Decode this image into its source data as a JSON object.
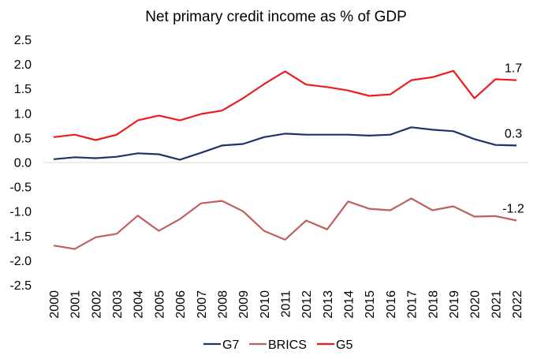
{
  "chart_data": {
    "type": "line",
    "title": "Net primary credit income as % of GDP",
    "xlabel": "",
    "ylabel": "",
    "ylim": [
      -2.5,
      2.5
    ],
    "yticks": [
      "2.5",
      "2.0",
      "1.5",
      "1.0",
      "0.5",
      "0.0",
      "-0.5",
      "-1.0",
      "-1.5",
      "-2.0",
      "-2.5"
    ],
    "ytick_values": [
      2.5,
      2.0,
      1.5,
      1.0,
      0.5,
      0.0,
      -0.5,
      -1.0,
      -1.5,
      -2.0,
      -2.5
    ],
    "grid": false,
    "legend_placement": "bottom",
    "x": [
      "2000",
      "2001",
      "2002",
      "2003",
      "2004",
      "2005",
      "2006",
      "2007",
      "2008",
      "2009",
      "2010",
      "2011",
      "2012",
      "2013",
      "2014",
      "2015",
      "2016",
      "2017",
      "2018",
      "2019",
      "2020",
      "2021",
      "2022"
    ],
    "series": [
      {
        "name": "G7",
        "color": "#1f3468",
        "end_label": "0.3",
        "values": [
          0.06,
          0.1,
          0.08,
          0.11,
          0.18,
          0.16,
          0.05,
          0.19,
          0.34,
          0.37,
          0.51,
          0.58,
          0.56,
          0.56,
          0.56,
          0.54,
          0.56,
          0.71,
          0.66,
          0.63,
          0.47,
          0.35,
          0.34
        ]
      },
      {
        "name": "BRICS",
        "color": "#c0605e",
        "end_label": "-1.2",
        "values": [
          -1.7,
          -1.77,
          -1.53,
          -1.46,
          -1.09,
          -1.4,
          -1.16,
          -0.84,
          -0.79,
          -1.0,
          -1.4,
          -1.58,
          -1.19,
          -1.37,
          -0.8,
          -0.95,
          -0.98,
          -0.74,
          -0.98,
          -0.9,
          -1.11,
          -1.1,
          -1.19
        ]
      },
      {
        "name": "G5",
        "color": "#ee1c1c",
        "end_label": "1.7",
        "values": [
          0.51,
          0.56,
          0.45,
          0.56,
          0.85,
          0.95,
          0.85,
          0.98,
          1.05,
          1.3,
          1.59,
          1.85,
          1.58,
          1.53,
          1.46,
          1.35,
          1.38,
          1.67,
          1.73,
          1.86,
          1.3,
          1.69,
          1.67
        ]
      }
    ]
  }
}
